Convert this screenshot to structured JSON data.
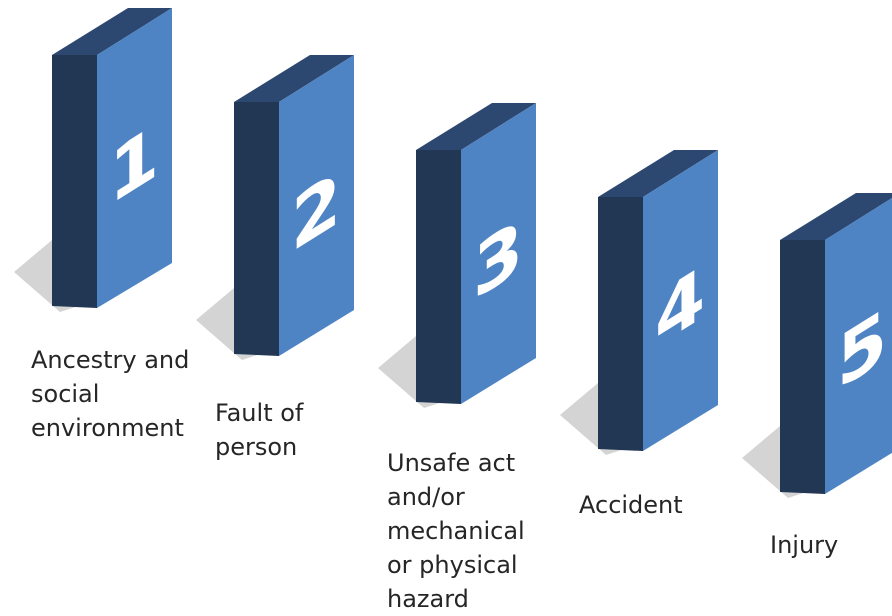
{
  "colors": {
    "front_face": "#4f84c4",
    "side_face": "#213754",
    "top_face": "#2c4770",
    "shadow": "#c9c9c9",
    "number": "#ffffff",
    "label_text": "#262626"
  },
  "dominoes": [
    {
      "number": "1",
      "label": "Ancestry and\nsocial\nenvironment"
    },
    {
      "number": "2",
      "label": "Fault of\nperson"
    },
    {
      "number": "3",
      "label": "Unsafe act\nand/or\nmechanical\nor physical\nhazard"
    },
    {
      "number": "4",
      "label": "Accident"
    },
    {
      "number": "5",
      "label": "Injury"
    }
  ]
}
